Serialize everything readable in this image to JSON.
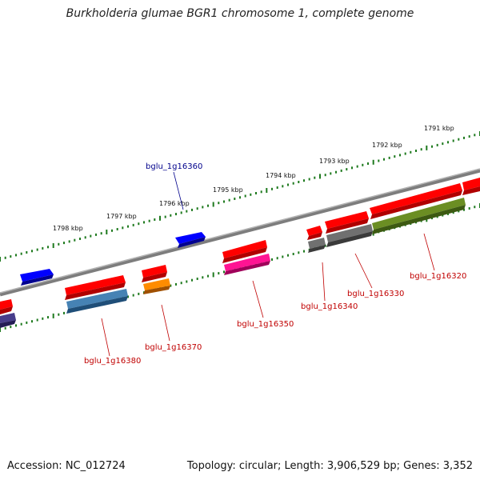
{
  "title": "Burkholderia glumae BGR1 chromosome 1, complete genome",
  "footer": {
    "accession": "Accession: NC_012724",
    "stats": "Topology: circular; Length: 3,906,529 bp; Genes: 3,352"
  },
  "colors": {
    "backbone": "#7d7d7d",
    "tick": "#1e7a1e",
    "label_red": "#c00000",
    "label_blue": "#00008b"
  },
  "kbp_labels": [
    "1791 kbp",
    "1792 kbp",
    "1793 kbp",
    "1794 kbp",
    "1795 kbp",
    "1796 kbp",
    "1797 kbp",
    "1798 kbp"
  ],
  "gene_labels": [
    {
      "text": "bglu_1g16360",
      "color": "#00008b"
    },
    {
      "text": "bglu_1g16320",
      "color": "#c00000"
    },
    {
      "text": "bglu_1g16330",
      "color": "#c00000"
    },
    {
      "text": "bglu_1g16340",
      "color": "#c00000"
    },
    {
      "text": "bglu_1g16350",
      "color": "#c00000"
    },
    {
      "text": "bglu_1g16370",
      "color": "#c00000"
    },
    {
      "text": "bglu_1g16380",
      "color": "#c00000"
    }
  ]
}
